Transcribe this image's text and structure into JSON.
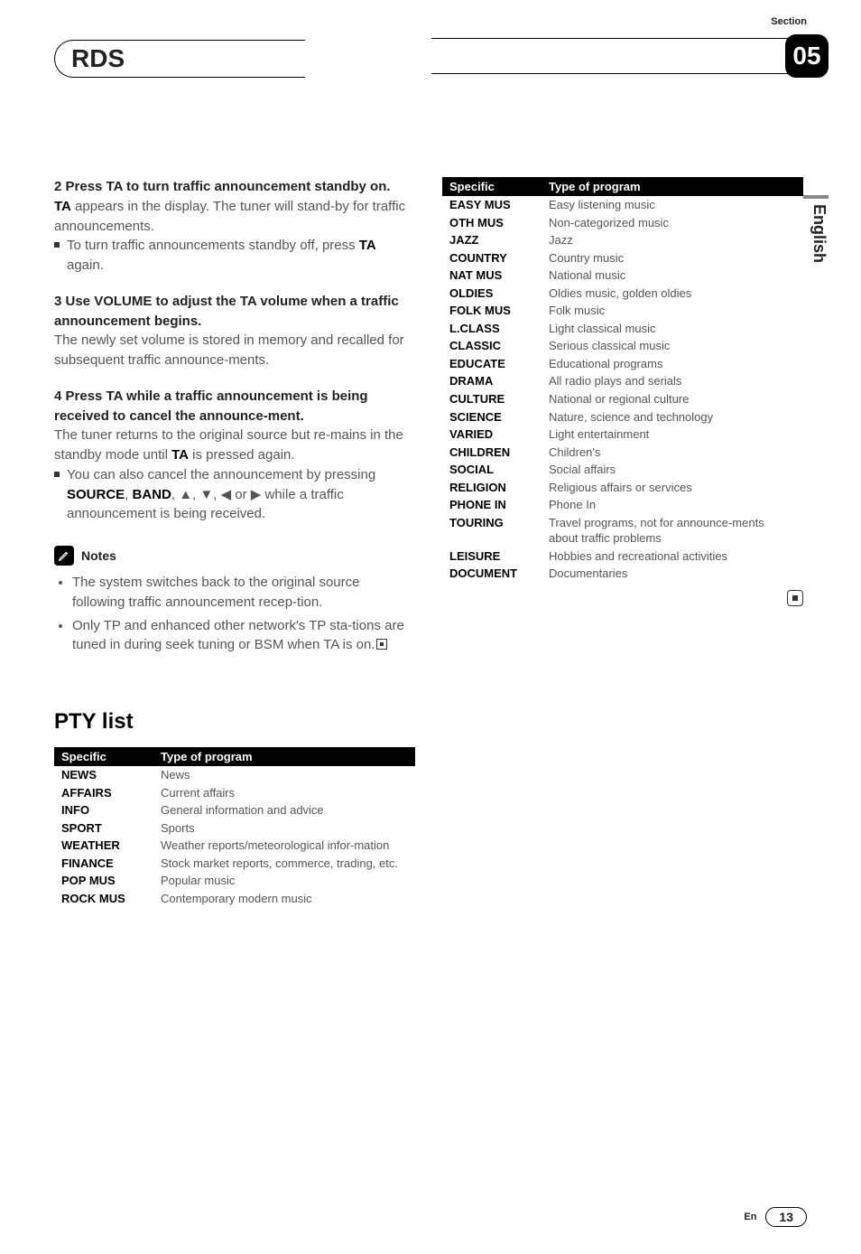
{
  "header": {
    "title": "RDS",
    "section_label": "Section",
    "section_number": "05",
    "language": "English"
  },
  "left": {
    "step2_head": "2   Press TA to turn traffic announcement standby on.",
    "step2_body_a": "TA",
    "step2_body_b": " appears in the display. The tuner will stand-by for traffic announcements.",
    "step2_bullet_a": "To turn traffic announcements standby off, press ",
    "step2_bullet_b": "TA",
    "step2_bullet_c": " again.",
    "step3_head": "3   Use VOLUME to adjust the TA volume when a traffic announcement begins.",
    "step3_body": "The newly set volume is stored in memory and recalled for subsequent traffic announce-ments.",
    "step4_head": "4   Press TA while a traffic announcement is being received to cancel the announce-ment.",
    "step4_body_a": "The tuner returns to the original source but re-mains in the standby mode until ",
    "step4_body_b": "TA",
    "step4_body_c": " is pressed again.",
    "step4_bullet_a": "You can also cancel the announcement by pressing ",
    "step4_bullet_b": "SOURCE",
    "step4_bullet_c": ", ",
    "step4_bullet_d": "BAND",
    "step4_bullet_e": ", ▲, ▼, ◀ or ▶ while a traffic announcement is being received.",
    "notes_label": "Notes",
    "note1": "The system switches back to the original source following traffic announcement recep-tion.",
    "note2": "Only TP and enhanced other network's TP sta-tions are tuned in during seek tuning or BSM when TA is on.",
    "pty_heading": "PTY list",
    "table_head_specific": "Specific",
    "table_head_type": "Type of program",
    "rows": [
      {
        "s": "NEWS",
        "t": "News"
      },
      {
        "s": "AFFAIRS",
        "t": "Current affairs"
      },
      {
        "s": "INFO",
        "t": "General information and advice"
      },
      {
        "s": "SPORT",
        "t": "Sports"
      },
      {
        "s": "WEATHER",
        "t": "Weather reports/meteorological infor-mation"
      },
      {
        "s": "FINANCE",
        "t": "Stock market reports, commerce, trading, etc."
      },
      {
        "s": "POP MUS",
        "t": "Popular music"
      },
      {
        "s": "ROCK MUS",
        "t": "Contemporary modern music"
      }
    ]
  },
  "right": {
    "table_head_specific": "Specific",
    "table_head_type": "Type of program",
    "rows": [
      {
        "s": "EASY MUS",
        "t": "Easy listening music"
      },
      {
        "s": "OTH MUS",
        "t": "Non-categorized music"
      },
      {
        "s": "JAZZ",
        "t": "Jazz"
      },
      {
        "s": "COUNTRY",
        "t": "Country music"
      },
      {
        "s": "NAT MUS",
        "t": "National music"
      },
      {
        "s": "OLDIES",
        "t": "Oldies music, golden oldies"
      },
      {
        "s": "FOLK MUS",
        "t": "Folk music"
      },
      {
        "s": "L.CLASS",
        "t": "Light classical music"
      },
      {
        "s": "CLASSIC",
        "t": "Serious classical music"
      },
      {
        "s": "EDUCATE",
        "t": "Educational programs"
      },
      {
        "s": "DRAMA",
        "t": "All radio plays and serials"
      },
      {
        "s": "CULTURE",
        "t": "National or regional culture"
      },
      {
        "s": "SCIENCE",
        "t": "Nature, science and technology"
      },
      {
        "s": "VARIED",
        "t": "Light entertainment"
      },
      {
        "s": "CHILDREN",
        "t": "Children's"
      },
      {
        "s": "SOCIAL",
        "t": "Social affairs"
      },
      {
        "s": "RELIGION",
        "t": "Religious affairs or services"
      },
      {
        "s": "PHONE IN",
        "t": "Phone In"
      },
      {
        "s": "TOURING",
        "t": "Travel programs, not for announce-ments about traffic problems"
      },
      {
        "s": "LEISURE",
        "t": "Hobbies and recreational activities"
      },
      {
        "s": "DOCUMENT",
        "t": "Documentaries"
      }
    ]
  },
  "footer": {
    "lang": "En",
    "page": "13"
  }
}
